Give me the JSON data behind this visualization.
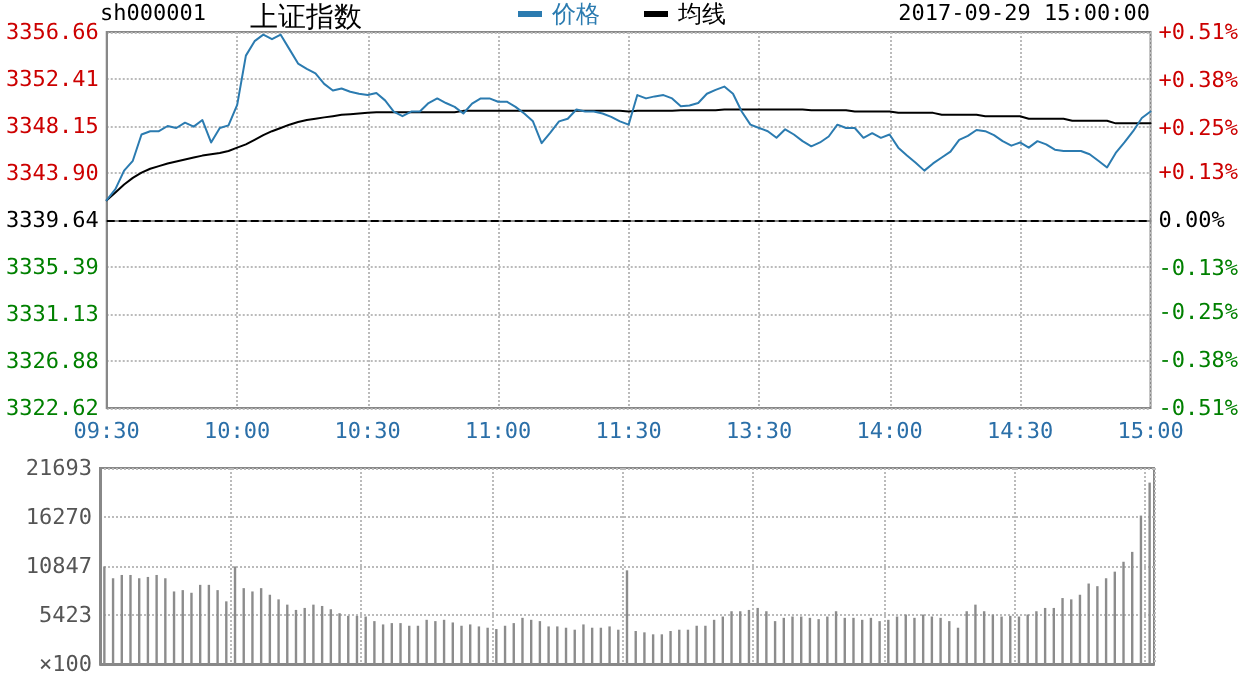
{
  "chart_data": [
    {
      "type": "line",
      "title": "上证指数",
      "annotations": [
        "sh000001",
        "2017-09-29 15:00:00"
      ],
      "categories": [
        "09:30",
        null,
        null,
        null,
        null,
        null,
        null,
        null,
        null,
        null,
        null,
        null,
        null,
        null,
        null,
        "10:00",
        null,
        null,
        null,
        null,
        null,
        null,
        null,
        null,
        null,
        null,
        null,
        null,
        null,
        null,
        "10:30",
        null,
        null,
        null,
        null,
        null,
        null,
        null,
        null,
        null,
        null,
        null,
        null,
        null,
        null,
        "11:00",
        null,
        null,
        null,
        null,
        null,
        null,
        null,
        null,
        null,
        null,
        null,
        null,
        null,
        null,
        "11:30",
        null,
        null,
        null,
        null,
        null,
        null,
        null,
        null,
        null,
        null,
        null,
        null,
        null,
        null,
        "13:30",
        null,
        null,
        null,
        null,
        null,
        null,
        null,
        null,
        null,
        null,
        null,
        null,
        null,
        null,
        "14:00",
        null,
        null,
        null,
        null,
        null,
        null,
        null,
        null,
        null,
        null,
        null,
        null,
        null,
        null,
        "14:30",
        null,
        null,
        null,
        null,
        null,
        null,
        null,
        null,
        null,
        null,
        null,
        null,
        null,
        null,
        "15:00"
      ],
      "series": [
        {
          "name": "价格",
          "color": "#2b7bb0",
          "values": [
            3341.43,
            3342.44,
            3344.11,
            3345.0,
            3347.38,
            3347.68,
            3347.68,
            3348.15,
            3347.97,
            3348.45,
            3348.09,
            3348.69,
            3346.66,
            3347.97,
            3348.21,
            3350.06,
            3354.52,
            3355.83,
            3356.42,
            3356.01,
            3356.42,
            3355.11,
            3353.8,
            3353.33,
            3352.91,
            3351.96,
            3351.36,
            3351.54,
            3351.25,
            3351.07,
            3350.95,
            3351.13,
            3350.47,
            3349.46,
            3349.04,
            3349.46,
            3349.46,
            3350.23,
            3350.65,
            3350.23,
            3349.88,
            3349.28,
            3350.17,
            3350.65,
            3350.65,
            3350.35,
            3350.35,
            3349.88,
            3349.28,
            3348.57,
            3346.6,
            3347.56,
            3348.57,
            3348.81,
            3349.64,
            3349.46,
            3349.46,
            3349.28,
            3348.98,
            3348.57,
            3348.27,
            3350.95,
            3350.65,
            3350.83,
            3350.95,
            3350.65,
            3349.94,
            3350.0,
            3350.23,
            3351.07,
            3351.42,
            3351.72,
            3351.07,
            3349.46,
            3348.27,
            3347.97,
            3347.68,
            3347.08,
            3347.85,
            3347.38,
            3346.78,
            3346.31,
            3346.66,
            3347.2,
            3348.27,
            3347.97,
            3347.97,
            3347.08,
            3347.5,
            3347.08,
            3347.38,
            3346.19,
            3345.47,
            3344.82,
            3344.11,
            3344.76,
            3345.3,
            3345.83,
            3346.9,
            3347.26,
            3347.79,
            3347.68,
            3347.32,
            3346.78,
            3346.37,
            3346.66,
            3346.19,
            3346.78,
            3346.49,
            3346.01,
            3345.89,
            3345.89,
            3345.89,
            3345.59,
            3345.0,
            3344.4,
            3345.71,
            3346.66,
            3347.68,
            3348.87,
            3349.46
          ]
        },
        {
          "name": "均线",
          "color": "#000000",
          "values": [
            3341.43,
            3342.14,
            3342.86,
            3343.45,
            3343.93,
            3344.28,
            3344.52,
            3344.76,
            3344.94,
            3345.12,
            3345.3,
            3345.47,
            3345.59,
            3345.71,
            3345.89,
            3346.19,
            3346.49,
            3346.9,
            3347.32,
            3347.68,
            3347.97,
            3348.27,
            3348.51,
            3348.69,
            3348.81,
            3348.93,
            3349.04,
            3349.16,
            3349.22,
            3349.28,
            3349.34,
            3349.4,
            3349.4,
            3349.4,
            3349.4,
            3349.4,
            3349.4,
            3349.4,
            3349.4,
            3349.4,
            3349.4,
            3349.52,
            3349.52,
            3349.52,
            3349.52,
            3349.52,
            3349.52,
            3349.52,
            3349.52,
            3349.52,
            3349.52,
            3349.52,
            3349.52,
            3349.52,
            3349.52,
            3349.52,
            3349.52,
            3349.52,
            3349.52,
            3349.52,
            3349.46,
            3349.52,
            3349.52,
            3349.52,
            3349.52,
            3349.52,
            3349.58,
            3349.58,
            3349.58,
            3349.58,
            3349.58,
            3349.64,
            3349.64,
            3349.64,
            3349.64,
            3349.64,
            3349.64,
            3349.64,
            3349.64,
            3349.64,
            3349.64,
            3349.58,
            3349.58,
            3349.58,
            3349.58,
            3349.58,
            3349.46,
            3349.46,
            3349.46,
            3349.46,
            3349.46,
            3349.34,
            3349.34,
            3349.34,
            3349.34,
            3349.34,
            3349.16,
            3349.16,
            3349.16,
            3349.16,
            3349.16,
            3349.04,
            3349.04,
            3349.04,
            3349.04,
            3349.04,
            3348.81,
            3348.81,
            3348.81,
            3348.81,
            3348.81,
            3348.63,
            3348.63,
            3348.63,
            3348.63,
            3348.63,
            3348.39,
            3348.39,
            3348.39,
            3348.39,
            3348.39
          ]
        }
      ],
      "ylim": [
        3322.62,
        3356.66
      ],
      "yticks": [
        3322.62,
        3326.88,
        3331.13,
        3335.39,
        3339.64,
        {
          "value": 3343.9,
          "label": "3343.90"
        },
        3348.15,
        3352.41,
        3356.66
      ],
      "y2lim": [
        -0.51,
        0.51
      ],
      "y2ticks": [
        {
          "value": -0.51,
          "label": "-0.51%"
        },
        {
          "value": -0.38,
          "label": "-0.38%"
        },
        {
          "value": -0.25,
          "label": "-0.25%"
        },
        {
          "value": -0.13,
          "label": "-0.13%"
        },
        {
          "value": 0,
          "label": "0.00%"
        },
        {
          "value": 0.13,
          "label": "+0.13%"
        },
        {
          "value": 0.25,
          "label": "+0.25%"
        },
        {
          "value": 0.38,
          "label": "+0.38%"
        },
        {
          "value": 0.51,
          "label": "+0.51%"
        }
      ],
      "ref_lines": [
        {
          "axis": "y",
          "value": 3339.64,
          "color": "#000000",
          "line_style": "dashed"
        }
      ],
      "grid": true,
      "legend": "top",
      "marker": "none",
      "line_style": "solid"
    },
    {
      "type": "bar",
      "color": "#8c8c8c",
      "categories": [
        null,
        null,
        null,
        null,
        null,
        null,
        null,
        null,
        null,
        null,
        null,
        null,
        null,
        null,
        null,
        null,
        null,
        null,
        null,
        null,
        null,
        null,
        null,
        null,
        null,
        null,
        null,
        null,
        null,
        null,
        null,
        null,
        null,
        null,
        null,
        null,
        null,
        null,
        null,
        null,
        null,
        null,
        null,
        null,
        null,
        null,
        null,
        null,
        null,
        null,
        null,
        null,
        null,
        null,
        null,
        null,
        null,
        null,
        null,
        null,
        null,
        null,
        null,
        null,
        null,
        null,
        null,
        null,
        null,
        null,
        null,
        null,
        null,
        null,
        null,
        null,
        null,
        null,
        null,
        null,
        null,
        null,
        null,
        null,
        null,
        null,
        null,
        null,
        null,
        null,
        null,
        null,
        null,
        null,
        null,
        null,
        null,
        null,
        null,
        null,
        null,
        null,
        null,
        null,
        null,
        null,
        null,
        null,
        null,
        null,
        null,
        null,
        null,
        null,
        null,
        null,
        null,
        null,
        null,
        null,
        null
      ],
      "values": [
        10800,
        9490,
        9855,
        9855,
        9490,
        9636,
        9855,
        9490,
        8030,
        8176,
        7884,
        8760,
        8760,
        8176,
        6935,
        10800,
        8395,
        8030,
        8395,
        7665,
        7154,
        6570,
        5986,
        6205,
        6570,
        6424,
        6059,
        5621,
        5329,
        5329,
        5256,
        4745,
        4380,
        4526,
        4526,
        4234,
        4234,
        4891,
        4745,
        4891,
        4599,
        4234,
        4380,
        4161,
        4015,
        3869,
        4234,
        4526,
        5110,
        4891,
        4745,
        4161,
        4161,
        4015,
        3796,
        4380,
        4015,
        4015,
        4161,
        3796,
        10366,
        3650,
        3504,
        3285,
        3285,
        3650,
        3796,
        3796,
        4234,
        4234,
        4891,
        5256,
        5840,
        5840,
        5986,
        6205,
        5840,
        4745,
        5110,
        5256,
        5256,
        5110,
        4964,
        5256,
        5840,
        5110,
        5110,
        4891,
        5110,
        4745,
        4891,
        5256,
        5475,
        5110,
        5475,
        5256,
        5110,
        4745,
        4015,
        5840,
        6570,
        5840,
        5475,
        5256,
        5329,
        5256,
        5475,
        5840,
        6205,
        6205,
        7300,
        7154,
        7665,
        8906,
        8614,
        9490,
        10220,
        11315,
        12410,
        16425,
        20075
      ],
      "ylabel": "×100",
      "ylim": [
        0,
        21693
      ],
      "yticks": [
        {
          "value": 0,
          "label": null
        },
        5423,
        10847,
        16270,
        21693
      ],
      "grid": true,
      "tick_labels": "y"
    }
  ]
}
